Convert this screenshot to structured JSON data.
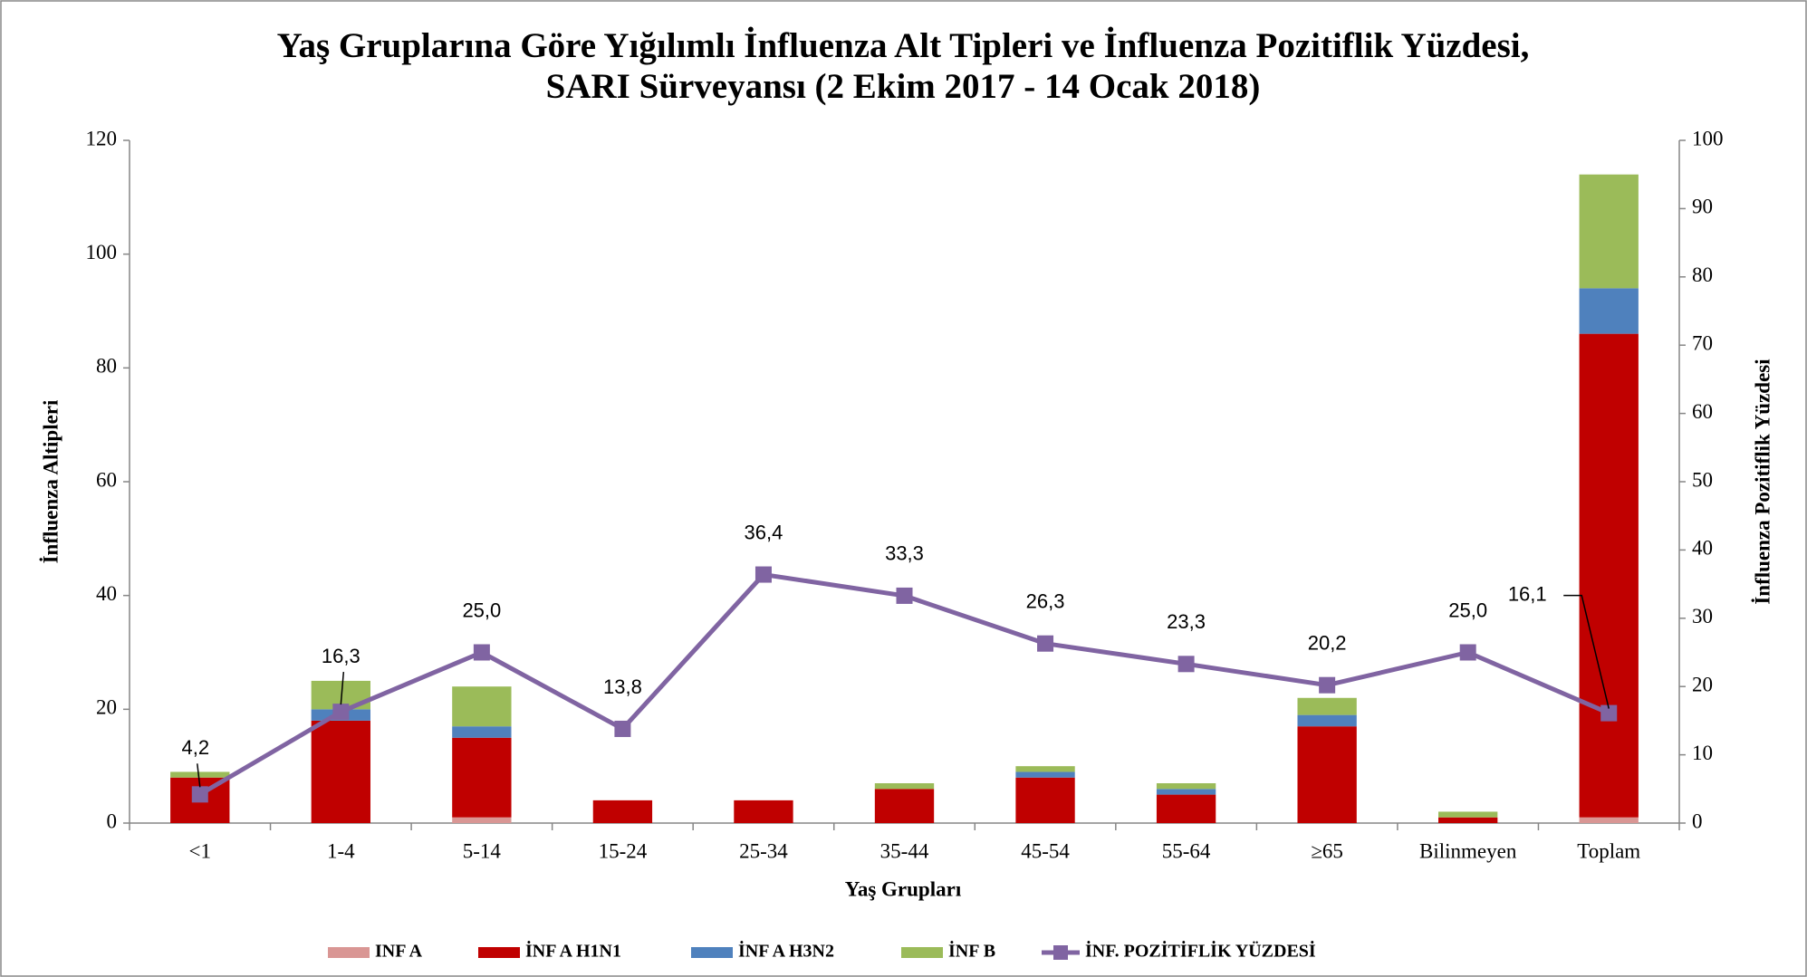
{
  "chart_data": {
    "type": "bar",
    "stacked": true,
    "title": "Yaş Gruplarına Göre  Yığılımlı İnfluenza Alt Tipleri ve İnfluenza Pozitiflik Yüzdesi,",
    "subtitle": "SARI Sürveyansı (2 Ekim 2017 - 14 Ocak 2018)",
    "xlabel": "Yaş Grupları",
    "ylabel": "İnfluenza Altipleri",
    "y2label": "İnfluenza Pozitiflik Yüzdesi",
    "categories": [
      "<1",
      "1-4",
      "5-14",
      "15-24",
      "25-34",
      "35-44",
      "45-54",
      "55-64",
      "≥65",
      "Bilinmeyen",
      "Toplam"
    ],
    "ylim": [
      0,
      120
    ],
    "yticks": [
      0,
      20,
      40,
      60,
      80,
      100,
      120
    ],
    "y2lim": [
      0,
      100
    ],
    "y2ticks": [
      0,
      10,
      20,
      30,
      40,
      50,
      60,
      70,
      80,
      90,
      100
    ],
    "legend": "bottom",
    "series": [
      {
        "name": "INF A",
        "color": "#d99694",
        "values": [
          0,
          0,
          1,
          0,
          0,
          0,
          0,
          0,
          0,
          0,
          1
        ]
      },
      {
        "name": "İNF A H1N1",
        "color": "#c00000",
        "values": [
          8,
          18,
          14,
          4,
          4,
          6,
          8,
          5,
          17,
          1,
          85
        ]
      },
      {
        "name": "İNF A H3N2",
        "color": "#4f81bd",
        "values": [
          0,
          2,
          2,
          0,
          0,
          0,
          1,
          1,
          2,
          0,
          8
        ]
      },
      {
        "name": "İNF B",
        "color": "#9bbb59",
        "values": [
          1,
          5,
          7,
          0,
          0,
          1,
          1,
          1,
          3,
          1,
          20
        ]
      },
      {
        "name": "İNF. POZİTİFLİK YÜZDESİ",
        "color": "#8064a2",
        "type": "line",
        "axis": "y2",
        "values": [
          4.2,
          16.3,
          25.0,
          13.8,
          36.4,
          33.3,
          26.3,
          23.3,
          20.2,
          25.0,
          16.1
        ],
        "value_labels": [
          "4,2",
          "16,3",
          "25,0",
          "13,8",
          "36,4",
          "33,3",
          "26,3",
          "23,3",
          "20,2",
          "25,0",
          "16,1"
        ]
      }
    ]
  }
}
